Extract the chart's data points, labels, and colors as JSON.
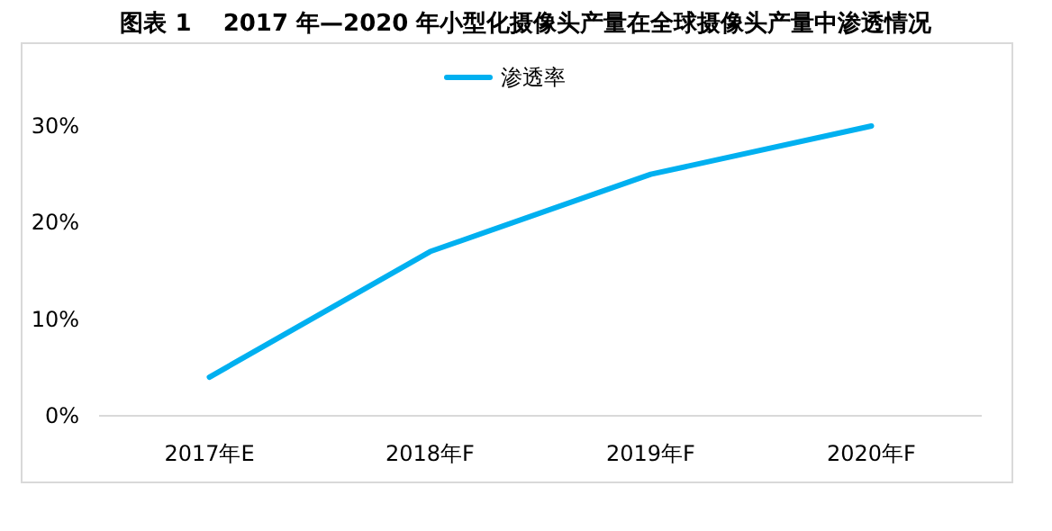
{
  "chart_data": {
    "type": "line",
    "title": "图表 1　 2017 年—2020 年小型化摄像头产量在全球摄像头产量中渗透情况",
    "categories": [
      "2017年E",
      "2018年F",
      "2019年F",
      "2020年F"
    ],
    "series": [
      {
        "name": "渗透率",
        "color": "#00b0f0",
        "values": [
          4,
          17,
          25,
          30
        ]
      }
    ],
    "ylim": [
      0,
      30
    ],
    "yticks": [
      {
        "value": 0,
        "label": "0%"
      },
      {
        "value": 10,
        "label": "10%"
      },
      {
        "value": 20,
        "label": "20%"
      },
      {
        "value": 30,
        "label": "30%"
      }
    ],
    "grid": false,
    "legend": "top",
    "marker": "none",
    "line_style": "solid"
  }
}
